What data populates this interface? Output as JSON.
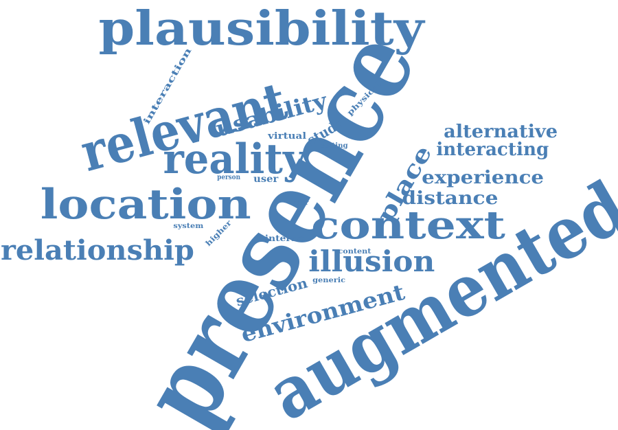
{
  "cloud": {
    "color": "#4a7fb5",
    "words": [
      {
        "text": "plausibility",
        "rotation": 0
      },
      {
        "text": "presence",
        "rotation": -60
      },
      {
        "text": "augmented",
        "rotation": -30
      },
      {
        "text": "relevant",
        "rotation": -15
      },
      {
        "text": "reality",
        "rotation": 0
      },
      {
        "text": "location",
        "rotation": 0
      },
      {
        "text": "context",
        "rotation": 0
      },
      {
        "text": "relationship",
        "rotation": 0
      },
      {
        "text": "illusion",
        "rotation": 0
      },
      {
        "text": "environment",
        "rotation": -15
      },
      {
        "text": "usability",
        "rotation": -15
      },
      {
        "text": "alternative",
        "rotation": 0
      },
      {
        "text": "interacting",
        "rotation": 0
      },
      {
        "text": "experience",
        "rotation": 0
      },
      {
        "text": "distance",
        "rotation": 0
      },
      {
        "text": "place",
        "rotation": -60
      },
      {
        "text": "selection",
        "rotation": -15
      },
      {
        "text": "interaction",
        "rotation": -60
      },
      {
        "text": "study",
        "rotation": -30
      },
      {
        "text": "physical",
        "rotation": -45
      },
      {
        "text": "virtual",
        "rotation": 0
      },
      {
        "text": "setting",
        "rotation": 0
      },
      {
        "text": "user",
        "rotation": 0
      },
      {
        "text": "person",
        "rotation": 0
      },
      {
        "text": "afar",
        "rotation": 0
      },
      {
        "text": "system",
        "rotation": 0
      },
      {
        "text": "higher",
        "rotation": -45
      },
      {
        "text": "interact",
        "rotation": 0
      },
      {
        "text": "content",
        "rotation": 0
      },
      {
        "text": "generic",
        "rotation": 0
      }
    ]
  }
}
